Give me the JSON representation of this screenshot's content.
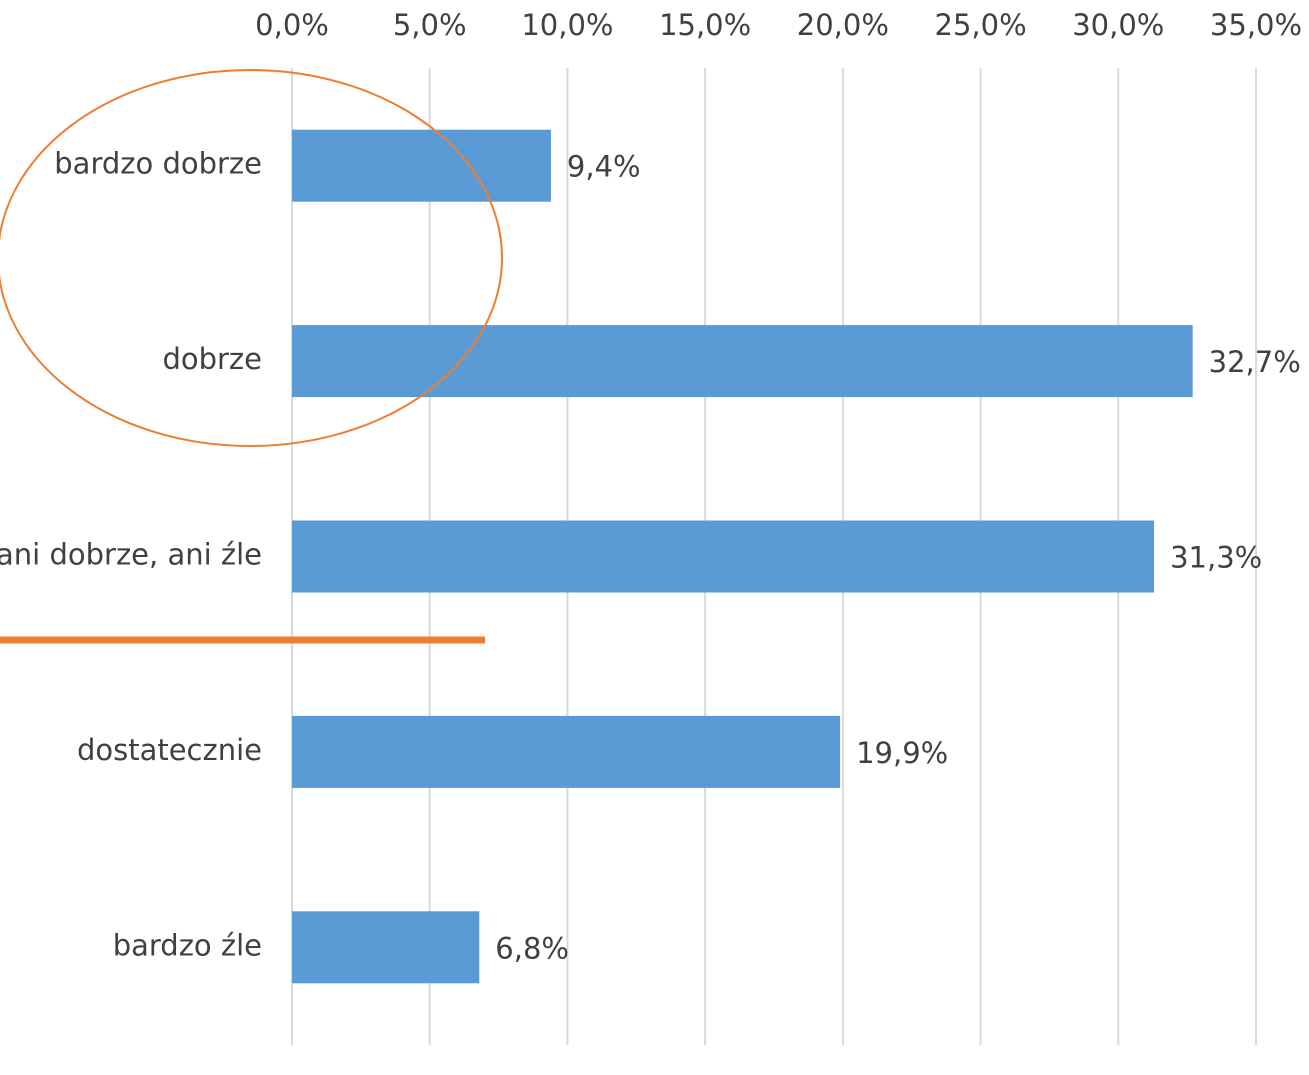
{
  "chart_data": {
    "type": "bar",
    "orientation": "horizontal",
    "categories": [
      "bardzo dobrze",
      "dobrze",
      "ani dobrze, ani źle",
      "dostatecznie",
      "bardzo źle"
    ],
    "values": [
      9.4,
      32.7,
      31.3,
      19.9,
      6.8
    ],
    "value_labels": [
      "9,4%",
      "32,7%",
      "31,3%",
      "19,9%",
      "6,8%"
    ],
    "color": "#5b9bd5",
    "xlim": [
      0,
      35
    ],
    "xticks": [
      {
        "value": 0,
        "label": "0,0%"
      },
      {
        "value": 5,
        "label": "5,0%"
      },
      {
        "value": 10,
        "label": "10,0%"
      },
      {
        "value": 15,
        "label": "15,0%"
      },
      {
        "value": 20,
        "label": "20,0%"
      },
      {
        "value": 25,
        "label": "25,0%"
      },
      {
        "value": 30,
        "label": "30,0%"
      },
      {
        "value": 35,
        "label": "35,0%"
      }
    ],
    "grid": true
  }
}
